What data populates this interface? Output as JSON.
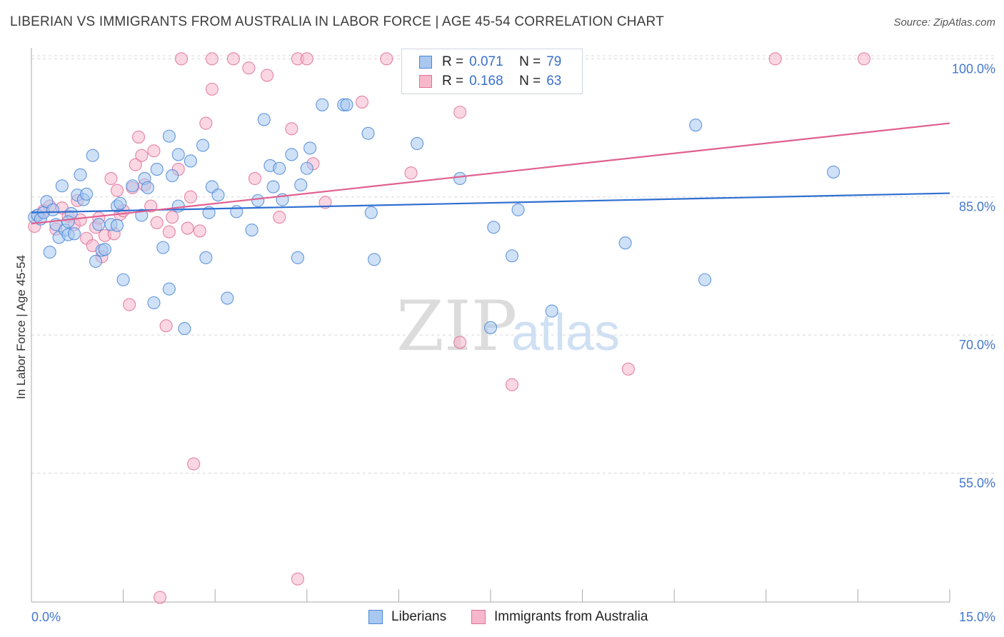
{
  "title": "LIBERIAN VS IMMIGRANTS FROM AUSTRALIA IN LABOR FORCE | AGE 45-54 CORRELATION CHART",
  "source": "Source: ZipAtlas.com",
  "watermark": {
    "zip": "ZIP",
    "atlas": "atlas"
  },
  "colors": {
    "blue_fill": "#a8c8f0",
    "blue_stroke": "#4a86d8",
    "blue_line": "#2f6fd0",
    "pink_fill": "#f6b7cb",
    "pink_stroke": "#e07098",
    "pink_line": "#e06090",
    "axis_text": "#4477cc",
    "grid": "#d8d8d8"
  },
  "legend": {
    "rows": [
      {
        "r_label": "R =",
        "r_value": "0.071",
        "n_label": "N =",
        "n_value": "79"
      },
      {
        "r_label": "R =",
        "r_value": "0.168",
        "n_label": "N =",
        "n_value": "63"
      }
    ]
  },
  "bottom_legend": {
    "series1": "Liberians",
    "series2": "Immigrants from Australia"
  },
  "chart_data": {
    "type": "scatter",
    "xlabel": "",
    "ylabel": "In Labor Force | Age 45-54",
    "xlim": [
      0,
      15
    ],
    "ylim": [
      41,
      101.5
    ],
    "x_tick_labels": [
      "0.0%",
      "15.0%"
    ],
    "y_ticks": [
      {
        "value": 100,
        "label": "100.0%"
      },
      {
        "value": 85,
        "label": "85.0%"
      },
      {
        "value": 70,
        "label": "70.0%"
      },
      {
        "value": 55,
        "label": "55.0%"
      }
    ],
    "series": [
      {
        "name": "Liberians",
        "trend": {
          "x": [
            0,
            15
          ],
          "y": [
            83.3,
            85.4
          ]
        },
        "points": [
          [
            0.05,
            82.8
          ],
          [
            0.1,
            83.0
          ],
          [
            0.15,
            82.6
          ],
          [
            0.2,
            83.3
          ],
          [
            0.25,
            84.5
          ],
          [
            0.3,
            79.0
          ],
          [
            0.35,
            83.6
          ],
          [
            0.4,
            82.0
          ],
          [
            0.45,
            80.6
          ],
          [
            0.5,
            86.2
          ],
          [
            0.55,
            81.4
          ],
          [
            0.6,
            80.9
          ],
          [
            0.65,
            83.2
          ],
          [
            0.7,
            81.0
          ],
          [
            0.75,
            85.2
          ],
          [
            0.8,
            87.4
          ],
          [
            0.85,
            84.7
          ],
          [
            0.9,
            85.3
          ],
          [
            1.0,
            89.5
          ],
          [
            1.05,
            78.0
          ],
          [
            1.1,
            82.0
          ],
          [
            1.15,
            79.2
          ],
          [
            1.2,
            79.3
          ],
          [
            1.3,
            82.0
          ],
          [
            1.4,
            84.0
          ],
          [
            1.45,
            84.3
          ],
          [
            1.5,
            76.0
          ],
          [
            1.65,
            86.2
          ],
          [
            1.8,
            83.0
          ],
          [
            1.85,
            87.0
          ],
          [
            1.9,
            86.0
          ],
          [
            2.0,
            73.5
          ],
          [
            2.05,
            88.0
          ],
          [
            2.15,
            79.5
          ],
          [
            2.25,
            75.0
          ],
          [
            2.25,
            91.6
          ],
          [
            2.3,
            87.3
          ],
          [
            2.4,
            84.0
          ],
          [
            2.4,
            89.6
          ],
          [
            2.5,
            70.7
          ],
          [
            2.6,
            88.9
          ],
          [
            2.8,
            90.6
          ],
          [
            2.85,
            78.4
          ],
          [
            2.9,
            83.3
          ],
          [
            2.95,
            86.1
          ],
          [
            3.05,
            85.2
          ],
          [
            3.2,
            74.0
          ],
          [
            3.35,
            83.4
          ],
          [
            3.6,
            81.4
          ],
          [
            3.7,
            84.6
          ],
          [
            3.8,
            93.4
          ],
          [
            3.9,
            88.4
          ],
          [
            3.95,
            86.1
          ],
          [
            4.05,
            88.1
          ],
          [
            4.1,
            84.7
          ],
          [
            4.25,
            89.6
          ],
          [
            4.35,
            78.4
          ],
          [
            4.4,
            86.3
          ],
          [
            4.5,
            88.1
          ],
          [
            4.55,
            90.3
          ],
          [
            4.75,
            95.0
          ],
          [
            5.1,
            95.0
          ],
          [
            5.15,
            95.0
          ],
          [
            5.5,
            91.9
          ],
          [
            5.55,
            83.3
          ],
          [
            5.6,
            78.2
          ],
          [
            6.3,
            90.8
          ],
          [
            7.0,
            87.0
          ],
          [
            7.5,
            70.8
          ],
          [
            7.55,
            81.7
          ],
          [
            7.85,
            78.6
          ],
          [
            7.95,
            83.6
          ],
          [
            8.5,
            72.6
          ],
          [
            9.7,
            80.0
          ],
          [
            10.85,
            92.8
          ],
          [
            11.0,
            76.0
          ],
          [
            13.1,
            87.7
          ],
          [
            1.4,
            81.9
          ],
          [
            0.6,
            82.3
          ]
        ]
      },
      {
        "name": "Immigrants from Australia",
        "trend": {
          "x": [
            0,
            15
          ],
          "y": [
            82.1,
            93.0
          ]
        },
        "points": [
          [
            0.05,
            81.8
          ],
          [
            0.1,
            83.0
          ],
          [
            0.2,
            83.5
          ],
          [
            0.3,
            84.0
          ],
          [
            0.4,
            81.5
          ],
          [
            0.5,
            83.8
          ],
          [
            0.6,
            82.9
          ],
          [
            0.7,
            82.0
          ],
          [
            0.75,
            84.6
          ],
          [
            0.8,
            82.5
          ],
          [
            0.9,
            80.5
          ],
          [
            1.0,
            79.7
          ],
          [
            1.05,
            81.7
          ],
          [
            1.1,
            82.7
          ],
          [
            1.15,
            78.5
          ],
          [
            1.2,
            80.8
          ],
          [
            1.3,
            87.0
          ],
          [
            1.35,
            81.0
          ],
          [
            1.4,
            85.7
          ],
          [
            1.45,
            83.1
          ],
          [
            1.5,
            83.5
          ],
          [
            1.6,
            73.3
          ],
          [
            1.65,
            86.0
          ],
          [
            1.7,
            88.5
          ],
          [
            1.75,
            91.5
          ],
          [
            1.8,
            89.5
          ],
          [
            1.85,
            86.3
          ],
          [
            1.95,
            84.0
          ],
          [
            2.0,
            90.0
          ],
          [
            2.05,
            82.2
          ],
          [
            2.1,
            41.5
          ],
          [
            2.2,
            71.0
          ],
          [
            2.25,
            81.2
          ],
          [
            2.3,
            82.8
          ],
          [
            2.4,
            88.0
          ],
          [
            2.45,
            100.0
          ],
          [
            2.55,
            81.6
          ],
          [
            2.6,
            85.0
          ],
          [
            2.65,
            56.0
          ],
          [
            2.75,
            81.3
          ],
          [
            2.85,
            93.0
          ],
          [
            2.95,
            96.7
          ],
          [
            2.95,
            100.0
          ],
          [
            3.3,
            100.0
          ],
          [
            3.55,
            99.0
          ],
          [
            3.65,
            87.0
          ],
          [
            3.85,
            98.2
          ],
          [
            4.05,
            82.8
          ],
          [
            4.25,
            92.4
          ],
          [
            4.35,
            100.0
          ],
          [
            4.35,
            43.5
          ],
          [
            4.5,
            100.0
          ],
          [
            4.6,
            88.6
          ],
          [
            4.8,
            84.4
          ],
          [
            5.4,
            95.3
          ],
          [
            5.8,
            100.0
          ],
          [
            6.2,
            87.6
          ],
          [
            7.0,
            94.2
          ],
          [
            7.0,
            69.2
          ],
          [
            7.85,
            64.6
          ],
          [
            9.75,
            66.3
          ],
          [
            12.15,
            100.0
          ],
          [
            13.6,
            100.0
          ]
        ]
      }
    ]
  }
}
